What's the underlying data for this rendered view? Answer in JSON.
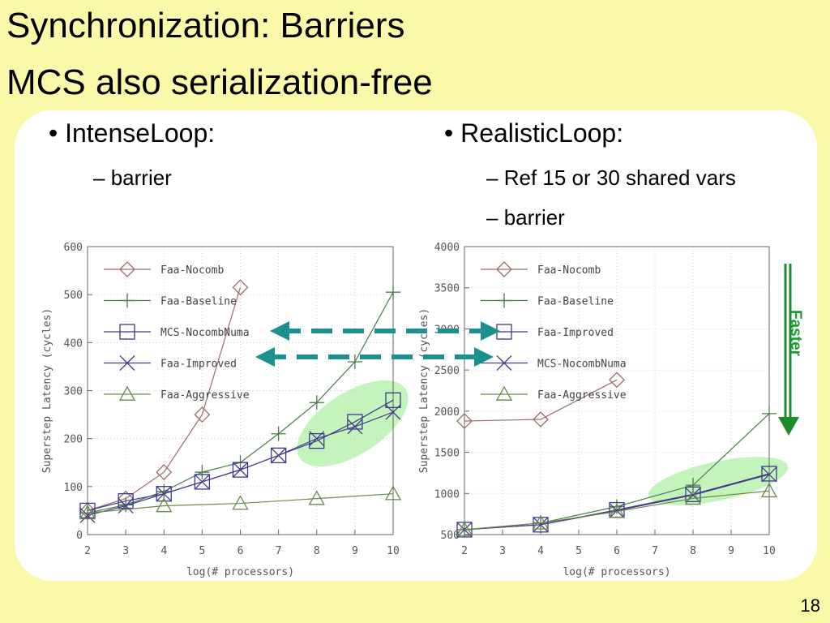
{
  "slide": {
    "title_line1": "Synchronization: Barriers",
    "title_line2": "MCS also serialization-free",
    "left_bullet": "IntenseLoop:",
    "left_sub1": "barrier",
    "right_bullet": "RealisticLoop:",
    "right_sub1": "Ref 15 or 30 shared vars",
    "right_sub2": "barrier",
    "bullet_glyph": "•",
    "dash_glyph": "–",
    "faster_label": "Faster",
    "page_number": "18",
    "colors": {
      "background": "#fbf8a9",
      "panel": "#ffffff",
      "highlight": "#b7f2b0",
      "arrow_dashed": "#1c8f8f",
      "arrow_faster": "#1a8c2a"
    }
  },
  "chart_data": [
    {
      "type": "line",
      "xlabel": "log(# processors)",
      "ylabel": "Superstep Latency (cycles)",
      "xlim": [
        2,
        10
      ],
      "ylim": [
        0,
        600
      ],
      "xticks": [
        2,
        3,
        4,
        5,
        6,
        7,
        8,
        9,
        10
      ],
      "yticks": [
        0,
        100,
        200,
        300,
        400,
        500,
        600
      ],
      "grid": true,
      "legend_position": "top-left",
      "series": [
        {
          "name": "Faa-Nocomb",
          "marker": "diamond",
          "color": "#9a6c6c",
          "x": [
            2,
            3,
            4,
            5,
            6
          ],
          "y": [
            50,
            75,
            130,
            250,
            515
          ]
        },
        {
          "name": "Faa-Baseline",
          "marker": "plus",
          "color": "#4a7a4a",
          "x": [
            2,
            3,
            4,
            5,
            6,
            7,
            8,
            9,
            10
          ],
          "y": [
            45,
            62,
            90,
            130,
            150,
            210,
            275,
            360,
            505
          ]
        },
        {
          "name": "MCS-NocombNuma",
          "marker": "square",
          "color": "#3a3a8a",
          "x": [
            2,
            3,
            4,
            5,
            6,
            7,
            8,
            9,
            10
          ],
          "y": [
            50,
            70,
            85,
            110,
            135,
            165,
            195,
            235,
            280
          ]
        },
        {
          "name": "Faa-Improved",
          "marker": "cross",
          "color": "#4a3a8a",
          "x": [
            2,
            3,
            4,
            5,
            6,
            7,
            8,
            9,
            10
          ],
          "y": [
            40,
            60,
            85,
            110,
            135,
            165,
            200,
            225,
            255
          ]
        },
        {
          "name": "Faa-Aggressive",
          "marker": "triangle",
          "color": "#6a8a4a",
          "x": [
            2,
            4,
            6,
            8,
            10
          ],
          "y": [
            45,
            60,
            65,
            75,
            85
          ]
        }
      ]
    },
    {
      "type": "line",
      "xlabel": "log(# processors)",
      "ylabel": "Superstep Latency (cycles)",
      "xlim": [
        2,
        10
      ],
      "ylim": [
        500,
        4000
      ],
      "xticks": [
        2,
        3,
        4,
        5,
        6,
        7,
        8,
        9,
        10
      ],
      "yticks": [
        500,
        1000,
        1500,
        2000,
        2500,
        3000,
        3500,
        4000
      ],
      "grid": true,
      "legend_position": "top-left",
      "series": [
        {
          "name": "Faa-Nocomb",
          "marker": "diamond",
          "color": "#9a6c6c",
          "x": [
            2,
            4,
            6
          ],
          "y": [
            1880,
            1900,
            2380
          ]
        },
        {
          "name": "Faa-Baseline",
          "marker": "plus",
          "color": "#4a7a4a",
          "x": [
            2,
            4,
            6,
            8,
            10
          ],
          "y": [
            560,
            640,
            840,
            1100,
            1970
          ]
        },
        {
          "name": "Faa-Improved",
          "marker": "square",
          "color": "#3a3a8a",
          "x": [
            2,
            4,
            6,
            8,
            10
          ],
          "y": [
            560,
            620,
            800,
            990,
            1240
          ]
        },
        {
          "name": "MCS-NocombNuma",
          "marker": "cross",
          "color": "#4a3a8a",
          "x": [
            2,
            4,
            6,
            8,
            10
          ],
          "y": [
            560,
            620,
            790,
            980,
            1230
          ]
        },
        {
          "name": "Faa-Aggressive",
          "marker": "triangle",
          "color": "#6a8a4a",
          "x": [
            2,
            4,
            6,
            8,
            10
          ],
          "y": [
            560,
            640,
            780,
            940,
            1030
          ]
        }
      ]
    }
  ]
}
